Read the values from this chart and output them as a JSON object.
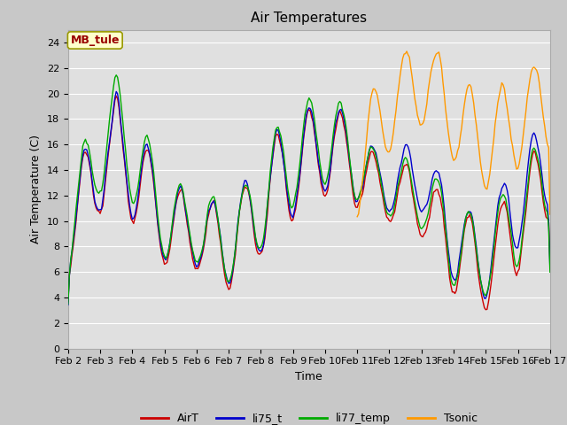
{
  "title": "Air Temperatures",
  "xlabel": "Time",
  "ylabel": "Air Temperature (C)",
  "ylim": [
    0,
    25
  ],
  "yticks": [
    0,
    2,
    4,
    6,
    8,
    10,
    12,
    14,
    16,
    18,
    20,
    22,
    24
  ],
  "x_labels": [
    "Feb 2",
    "Feb 3",
    "Feb 4",
    "Feb 5",
    "Feb 6",
    "Feb 7",
    "Feb 8",
    "Feb 9",
    "Feb 10",
    "Feb 11",
    "Feb 12",
    "Feb 13",
    "Feb 14",
    "Feb 15",
    "Feb 16",
    "Feb 17"
  ],
  "annotation_text": "MB_tule",
  "annotation_color": "#990000",
  "annotation_bg": "#ffffcc",
  "annotation_border": "#999900",
  "colors": {
    "AirT": "#cc0000",
    "li75_t": "#0000cc",
    "li77_temp": "#00aa00",
    "Tsonic": "#ff9900"
  },
  "line_width": 1.0,
  "fig_facecolor": "#c8c8c8",
  "plot_bg_color": "#e0e0e0",
  "grid_color": "#ffffff",
  "title_fontsize": 11,
  "label_fontsize": 9,
  "tick_fontsize": 8
}
